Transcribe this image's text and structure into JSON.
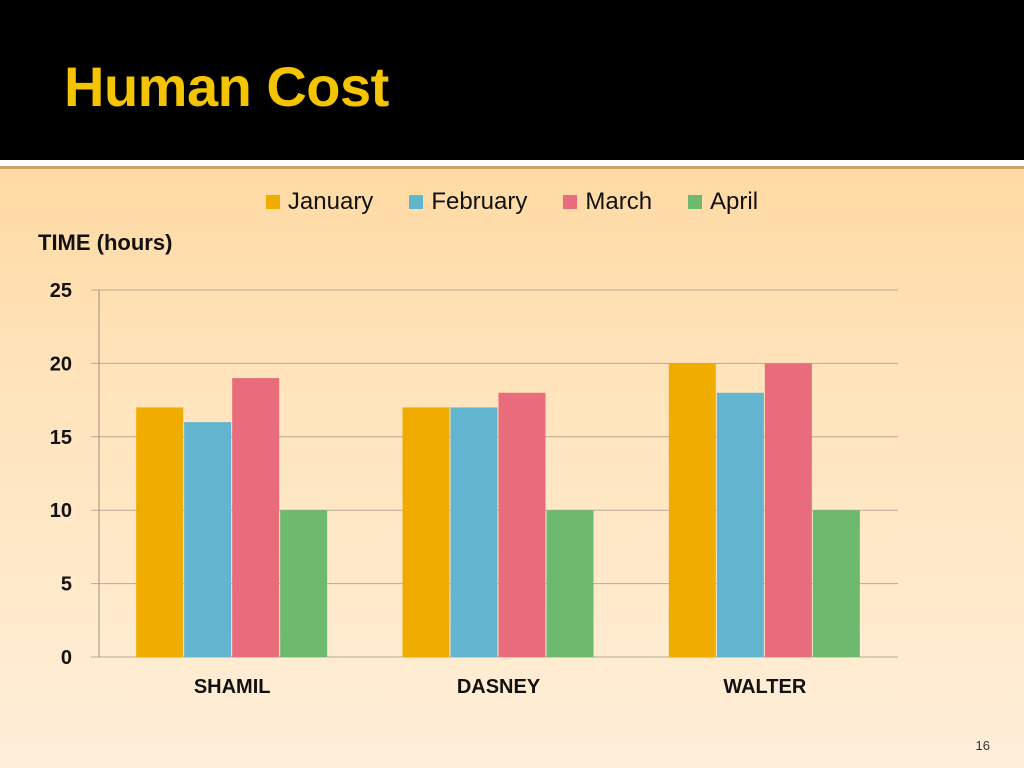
{
  "slide": {
    "title": "Human Cost",
    "title_color": "#f5c400",
    "page_number": "16"
  },
  "chart_data": {
    "type": "bar",
    "title": "",
    "xlabel": "",
    "ylabel": "TIME (hours)",
    "ylim": [
      0,
      25
    ],
    "yticks": [
      "0",
      "5",
      "10",
      "15",
      "20",
      "25"
    ],
    "grid": true,
    "legend_position": "top",
    "categories": [
      "SHAMIL",
      "DASNEY",
      "WALTER"
    ],
    "series": [
      {
        "name": "January",
        "color": "#f0ac00",
        "values": [
          17,
          17,
          20
        ]
      },
      {
        "name": "February",
        "color": "#63b5cf",
        "values": [
          16,
          17,
          18
        ]
      },
      {
        "name": "March",
        "color": "#e86c7c",
        "values": [
          19,
          18,
          20
        ]
      },
      {
        "name": "April",
        "color": "#6db96d",
        "values": [
          10,
          10,
          10
        ]
      }
    ]
  }
}
